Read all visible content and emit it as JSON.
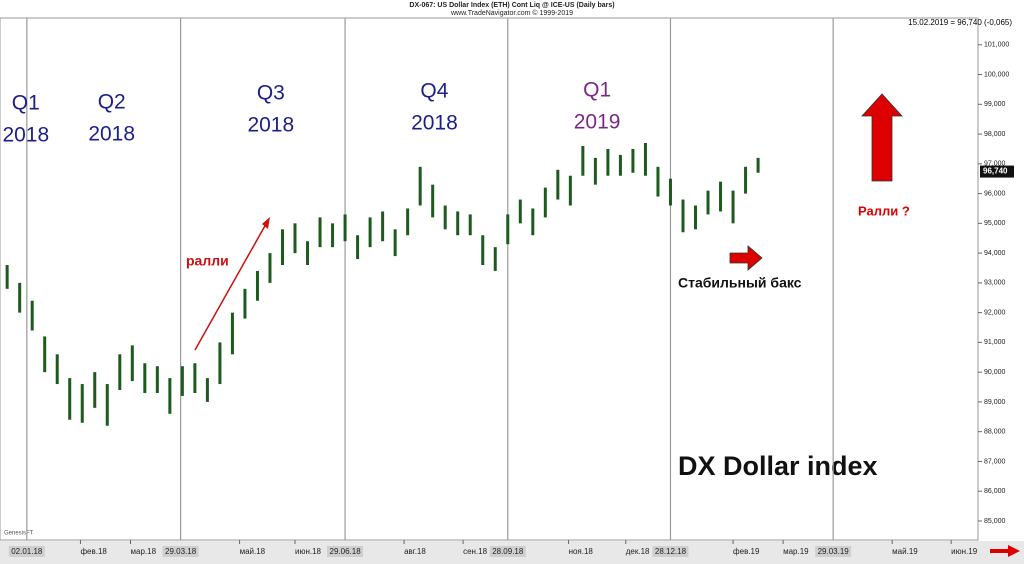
{
  "chart_data": {
    "type": "range",
    "title": "DX-067:  US Dollar Index (ETH) Cont Liq @ ICE-US  (Daily bars)",
    "subtitle": "www.TradeNavigator.com © 1999-2019",
    "last_quote": "15.02.2019 = 96,740 (-0,065)",
    "last_value": 96.74,
    "last_label": "96,740",
    "watermark": "DX Dollar index",
    "source": "GenesisFT",
    "color": "#1d5a1d",
    "x": [
      "22.12.17",
      "29.12.17",
      "05.01.18",
      "12.01.18",
      "19.01.18",
      "26.01.18",
      "02.02.18",
      "09.02.18",
      "16.02.18",
      "23.02.18",
      "02.03.18",
      "09.03.18",
      "16.03.18",
      "23.03.18",
      "30.03.18",
      "06.04.18",
      "13.04.18",
      "20.04.18",
      "27.04.18",
      "04.05.18",
      "11.05.18",
      "18.05.18",
      "25.05.18",
      "01.06.18",
      "08.06.18",
      "15.06.18",
      "22.06.18",
      "29.06.18",
      "06.07.18",
      "13.07.18",
      "20.07.18",
      "27.07.18",
      "03.08.18",
      "10.08.18",
      "17.08.18",
      "24.08.18",
      "31.08.18",
      "07.09.18",
      "14.09.18",
      "21.09.18",
      "28.09.18",
      "05.10.18",
      "12.10.18",
      "19.10.18",
      "26.10.18",
      "02.11.18",
      "09.11.18",
      "16.11.18",
      "23.11.18",
      "30.11.18",
      "07.12.18",
      "14.12.18",
      "21.12.18",
      "28.12.18",
      "04.01.19",
      "11.01.19",
      "18.01.19",
      "25.01.19",
      "01.02.19",
      "08.02.19",
      "15.02.19"
    ],
    "high": [
      93.6,
      93.0,
      92.4,
      91.2,
      90.6,
      89.8,
      89.6,
      90.0,
      89.6,
      90.6,
      90.9,
      90.3,
      90.2,
      89.8,
      90.2,
      90.3,
      89.8,
      91.0,
      92.0,
      92.8,
      93.4,
      94.0,
      94.8,
      95.0,
      94.4,
      95.2,
      95.0,
      95.3,
      94.6,
      95.2,
      95.4,
      94.8,
      95.5,
      96.9,
      96.3,
      95.6,
      95.4,
      95.3,
      94.6,
      94.2,
      95.3,
      95.8,
      95.5,
      96.2,
      96.8,
      96.6,
      97.6,
      97.2,
      97.5,
      97.3,
      97.5,
      97.7,
      96.9,
      96.5,
      95.8,
      95.6,
      96.1,
      96.4,
      96.1,
      96.9,
      97.2
    ],
    "low": [
      92.8,
      92.0,
      91.4,
      90.0,
      89.6,
      88.4,
      88.3,
      88.8,
      88.2,
      89.4,
      89.7,
      89.3,
      89.3,
      88.6,
      89.2,
      89.3,
      89.0,
      89.6,
      90.6,
      91.8,
      92.4,
      93.0,
      93.6,
      94.0,
      93.6,
      94.2,
      94.2,
      94.4,
      93.8,
      94.2,
      94.4,
      93.9,
      94.6,
      95.6,
      95.2,
      94.8,
      94.6,
      94.6,
      93.6,
      93.4,
      94.3,
      95.0,
      94.6,
      95.2,
      95.8,
      95.6,
      96.6,
      96.3,
      96.6,
      96.6,
      96.7,
      96.6,
      95.9,
      95.6,
      94.7,
      94.8,
      95.3,
      95.4,
      95.0,
      96.0,
      96.7
    ],
    "xlim": [
      "18.12.17",
      "18.06.19"
    ],
    "xticks": [
      {
        "value": "02.01.18",
        "label": "02.01.18"
      },
      {
        "value": "01.02.18",
        "label": "фев.18"
      },
      {
        "value": "01.03.18",
        "label": "мар.18"
      },
      {
        "value": "29.03.18",
        "label": "29.03.18"
      },
      {
        "value": "01.05.18",
        "label": "май.18"
      },
      {
        "value": "01.06.18",
        "label": "июн.18"
      },
      {
        "value": "29.06.18",
        "label": "29.06.18"
      },
      {
        "value": "01.08.18",
        "label": "авг.18"
      },
      {
        "value": "03.09.18",
        "label": "сен.18"
      },
      {
        "value": "28.09.18",
        "label": "28.09.18"
      },
      {
        "value": "01.11.18",
        "label": "ноя.18"
      },
      {
        "value": "03.12.18",
        "label": "дек.18"
      },
      {
        "value": "28.12.18",
        "label": "28.12.18"
      },
      {
        "value": "01.02.19",
        "label": "фев.19"
      },
      {
        "value": "01.03.19",
        "label": "мар.19"
      },
      {
        "value": "29.03.19",
        "label": "29.03.19"
      },
      {
        "value": "01.05.19",
        "label": "май.19"
      },
      {
        "value": "03.06.19",
        "label": "июн.19"
      }
    ],
    "ylim": [
      84.36,
      101.9
    ],
    "yticks": [
      {
        "value": 85,
        "label": "85,000"
      },
      {
        "value": 86,
        "label": "86,000"
      },
      {
        "value": 87,
        "label": "87,000"
      },
      {
        "value": 88,
        "label": "88,000"
      },
      {
        "value": 89,
        "label": "89,000"
      },
      {
        "value": 90,
        "label": "90,000"
      },
      {
        "value": 91,
        "label": "91,000"
      },
      {
        "value": 92,
        "label": "92,000"
      },
      {
        "value": 93,
        "label": "93,000"
      },
      {
        "value": 94,
        "label": "94,000"
      },
      {
        "value": 95,
        "label": "95,000"
      },
      {
        "value": 96,
        "label": "96,000"
      },
      {
        "value": 97,
        "label": "97,000"
      },
      {
        "value": 98,
        "label": "98,000"
      },
      {
        "value": 99,
        "label": "99,000"
      },
      {
        "value": 100,
        "label": "100,000"
      },
      {
        "value": 101,
        "label": "101,000"
      }
    ],
    "quarters": [
      {
        "quarter": "Q1",
        "year": "2018"
      },
      {
        "quarter": "Q2",
        "year": "2018"
      },
      {
        "quarter": "Q3",
        "year": "2018"
      },
      {
        "quarter": "Q4",
        "year": "2018"
      },
      {
        "quarter": "Q1",
        "year": "2019"
      }
    ],
    "annotations": {
      "rally": "ралли",
      "stable": "Стабильный бакс",
      "rally_q": "Ралли ?"
    }
  }
}
